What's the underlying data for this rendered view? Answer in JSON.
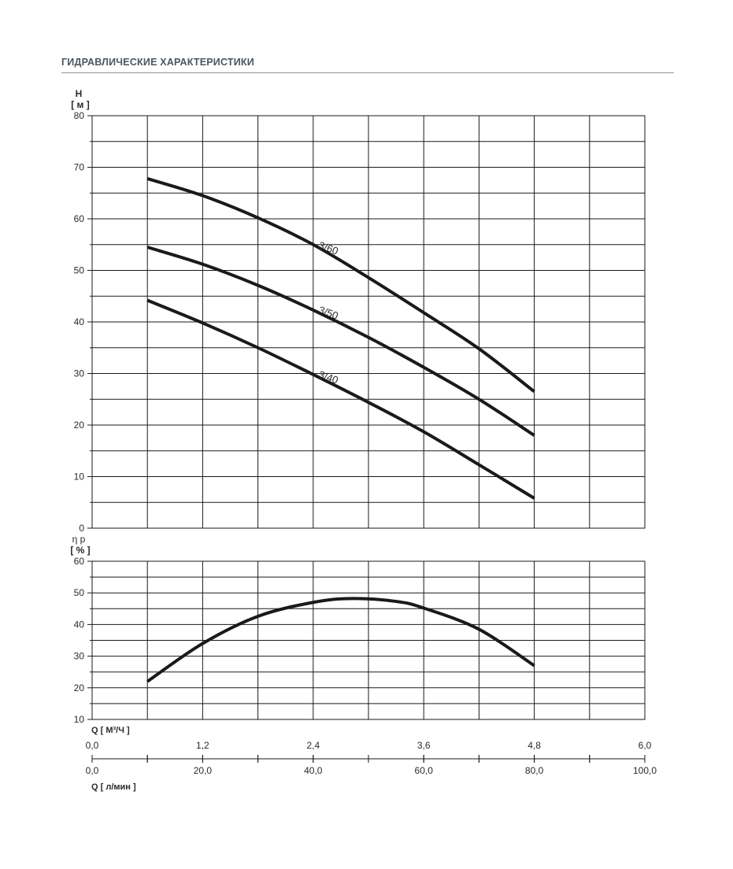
{
  "header": {
    "title": "ГИДРАВЛИЧЕСКИЕ ХАРАКТЕРИСТИКИ"
  },
  "colors": {
    "header_text": "#4a5663",
    "header_rule": "#8a949c",
    "grid": "#1a1a1a",
    "curve": "#1a1a1a"
  },
  "chart_data": [
    {
      "type": "line",
      "ylabel_symbol": "H",
      "ylabel_unit": "[ м ]",
      "ylim": [
        0,
        80
      ],
      "yticks": [
        "0",
        "10",
        "20",
        "30",
        "40",
        "50",
        "60",
        "70",
        "80"
      ],
      "xlim": [
        0,
        100
      ],
      "grid": true,
      "series": [
        {
          "name": "3/60",
          "x": [
            10,
            20,
            30,
            40,
            50,
            60,
            70,
            80
          ],
          "y": [
            67.8,
            64.5,
            60.2,
            55.0,
            48.6,
            41.8,
            34.8,
            26.5
          ]
        },
        {
          "name": "3/50",
          "x": [
            10,
            20,
            30,
            40,
            50,
            60,
            70,
            80
          ],
          "y": [
            54.5,
            51.2,
            47.1,
            42.3,
            37.0,
            31.2,
            25.0,
            18.0
          ]
        },
        {
          "name": "3/40",
          "x": [
            10,
            20,
            30,
            40,
            50,
            60,
            70,
            80
          ],
          "y": [
            44.2,
            39.8,
            35.0,
            29.8,
            24.4,
            18.7,
            12.3,
            5.8
          ]
        }
      ]
    },
    {
      "type": "line",
      "ylabel_symbol": "η p",
      "ylabel_unit": "[ % ]",
      "ylim": [
        10,
        60
      ],
      "yticks": [
        "10",
        "20",
        "30",
        "40",
        "50",
        "60"
      ],
      "xlim": [
        0,
        100
      ],
      "grid": true,
      "series": [
        {
          "x": [
            10,
            20,
            30,
            40,
            47,
            55,
            60,
            70,
            80
          ],
          "y": [
            22.0,
            34.0,
            42.6,
            47.0,
            48.2,
            47.3,
            45.2,
            38.5,
            27.0
          ]
        }
      ]
    }
  ],
  "x_axes": {
    "m3h": {
      "label": "Q [ М³/Ч ]",
      "ticks": [
        "0,0",
        "1,2",
        "2,4",
        "3,6",
        "4,8",
        "6,0"
      ]
    },
    "lmin": {
      "label": "Q [ л/мин ]",
      "ticks": [
        "0,0",
        "20,0",
        "40,0",
        "60,0",
        "80,0",
        "100,0"
      ]
    }
  }
}
